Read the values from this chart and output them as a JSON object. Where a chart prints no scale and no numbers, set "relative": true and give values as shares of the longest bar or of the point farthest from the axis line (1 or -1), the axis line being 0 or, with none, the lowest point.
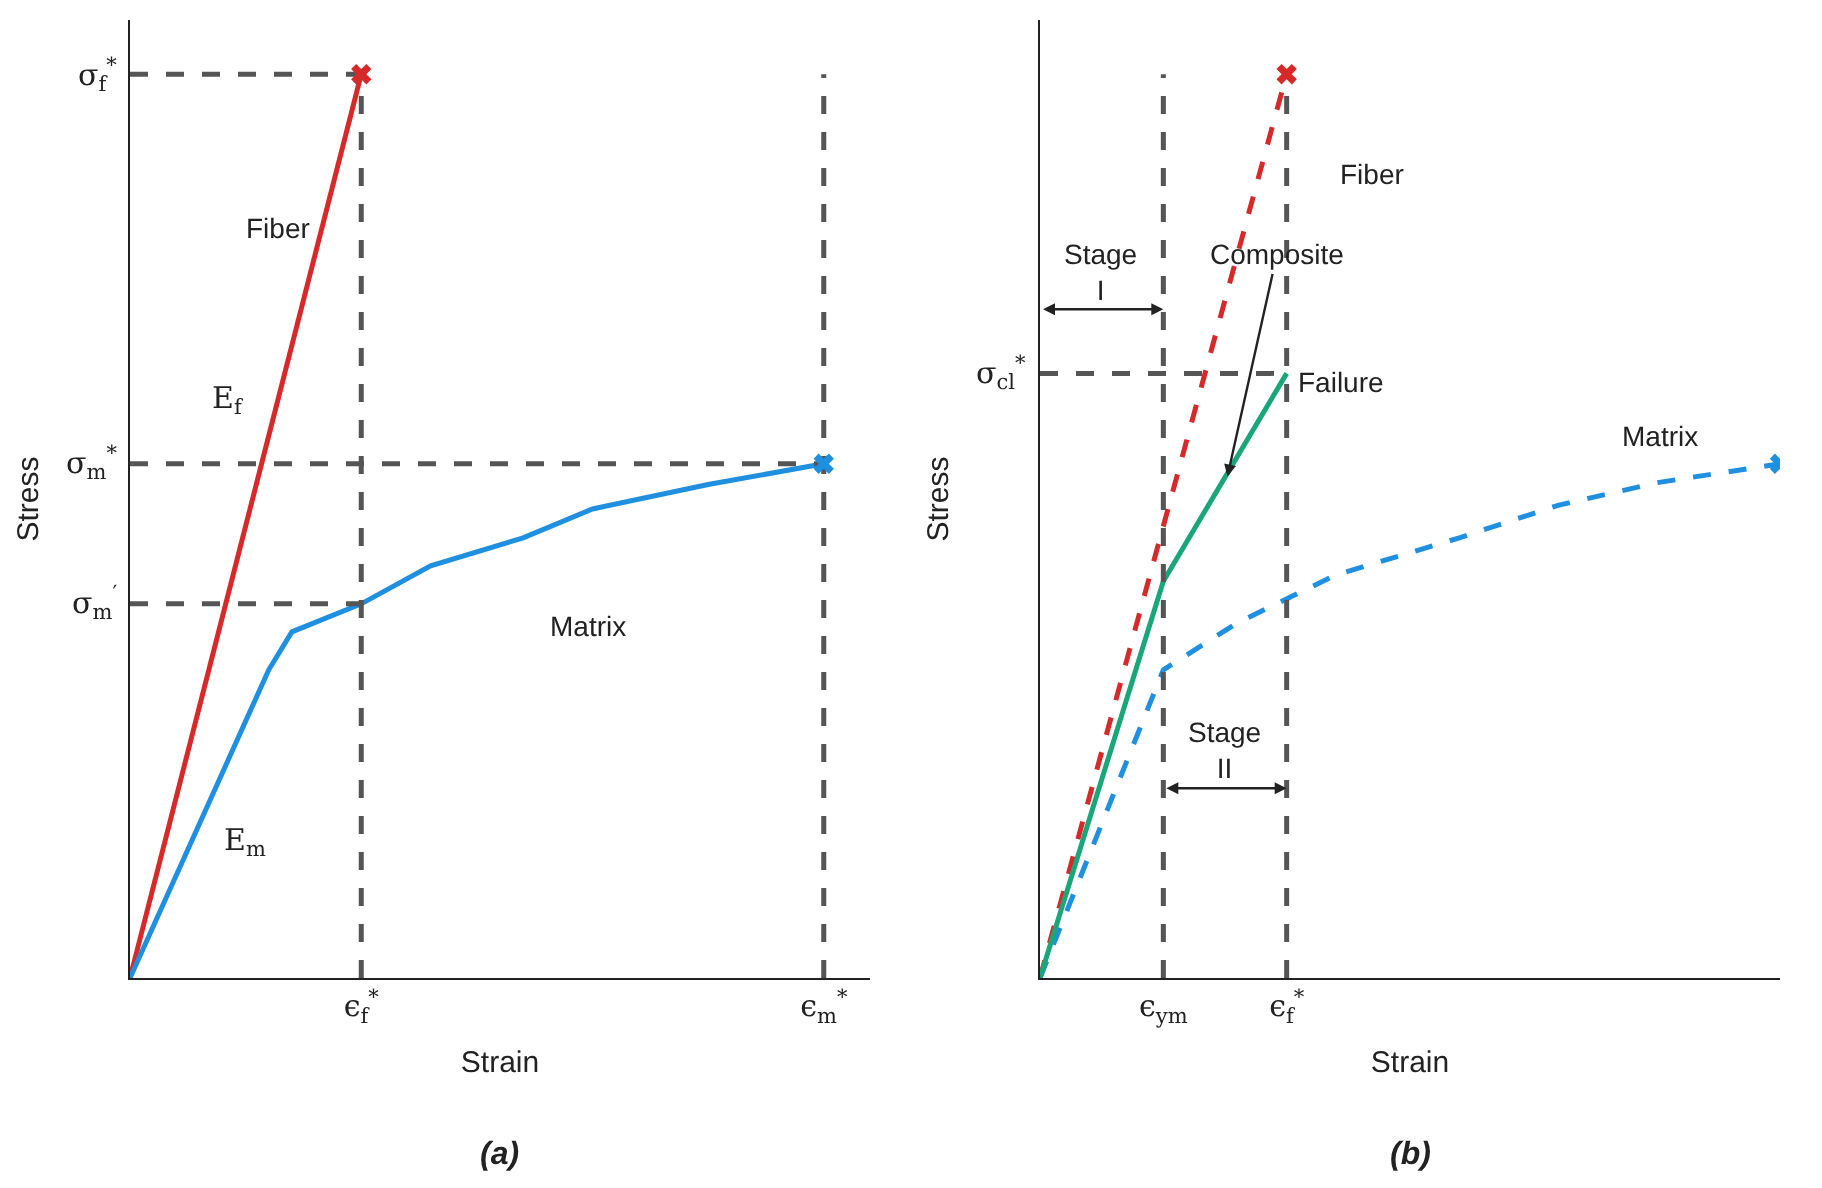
{
  "chart_data": [
    {
      "type": "line",
      "title": "(a)",
      "xlabel": "Strain",
      "ylabel": "Stress",
      "relative": true,
      "grid": false,
      "categories": [
        null,
        null,
        null,
        null,
        null,
        null,
        null,
        null,
        null,
        null,
        "ϵ$_{f}$$^{*}$",
        null,
        null,
        null,
        null,
        null,
        null,
        null,
        null,
        null,
        null,
        null,
        null,
        null,
        null,
        null,
        null,
        null,
        null,
        null,
        "ϵ$_{m}$$^{*}$",
        null,
        null
      ],
      "series": [
        {
          "color": "#d62a2a",
          "values": [
            0,
            null,
            null,
            null,
            null,
            null,
            null,
            null,
            null,
            null,
            1,
            null,
            null,
            null,
            null,
            null,
            null,
            null,
            null,
            null,
            null,
            null,
            null,
            null,
            null,
            null,
            null,
            null,
            null,
            null,
            null,
            null,
            null
          ]
        },
        {
          "color": "#1f8fe0",
          "values": [
            0,
            null,
            null,
            null,
            null,
            null,
            0.341,
            0.383,
            null,
            null,
            0.414,
            null,
            null,
            0.456,
            null,
            null,
            null,
            0.487,
            null,
            null,
            0.519,
            null,
            null,
            null,
            null,
            0.546,
            null,
            null,
            null,
            null,
            0.569,
            null,
            null
          ]
        },
        {
          "type": "scatter",
          "marker": "cross",
          "color": "#d62a2a",
          "values": [
            null,
            null,
            null,
            null,
            null,
            null,
            null,
            null,
            null,
            null,
            1,
            null,
            null,
            null,
            null,
            null,
            null,
            null,
            null,
            null,
            null,
            null,
            null,
            null,
            null,
            null,
            null,
            null,
            null,
            null,
            null,
            null,
            null
          ]
        },
        {
          "type": "scatter",
          "marker": "cross",
          "color": "#1f8fe0",
          "values": [
            null,
            null,
            null,
            null,
            null,
            null,
            null,
            null,
            null,
            null,
            null,
            null,
            null,
            null,
            null,
            null,
            null,
            null,
            null,
            null,
            null,
            null,
            null,
            null,
            null,
            null,
            null,
            null,
            null,
            null,
            0.569,
            null,
            null
          ]
        }
      ],
      "ref_lines": [
        {
          "axis": "x",
          "value": "ϵ$_{f}$$^{*}$",
          "line_style": "dashed",
          "color": "#555555"
        },
        {
          "axis": "x",
          "value": "ϵ$_{m}$$^{*}$",
          "line_style": "dashed",
          "color": "#555555"
        },
        {
          "axis": "y",
          "value": 1,
          "label": "σ$_{f}$$^{*}$",
          "line_style": "dashed",
          "color": "#555555"
        },
        {
          "axis": "y",
          "value": 0.569,
          "label": "σ$_{m}$$^{*}$",
          "line_style": "dashed",
          "color": "#555555"
        },
        {
          "axis": "y",
          "value": 0.414,
          "label": "σ$_{m}$$^{′}$",
          "line_style": "dashed",
          "color": "#555555"
        }
      ],
      "annotations": [
        "Fiber",
        "Matrix",
        "E$_{f}$",
        "E$_{m}$"
      ]
    },
    {
      "type": "line",
      "title": "(b)",
      "xlabel": "Strain",
      "ylabel": "Stress",
      "relative": true,
      "grid": false,
      "categories": [
        null,
        null,
        null,
        null,
        null,
        "ϵ$_{ym}$",
        null,
        null,
        null,
        null,
        "ϵ$_{f}$$^{*}$",
        null,
        null,
        null,
        null,
        null,
        null,
        null,
        null,
        null,
        null,
        null,
        null,
        null,
        null,
        null,
        null,
        null,
        null,
        null,
        null
      ],
      "series": [
        {
          "line_style": "dashed",
          "color": "#d62a2a",
          "values": [
            0,
            null,
            null,
            null,
            null,
            null,
            null,
            null,
            null,
            null,
            1,
            null,
            null,
            null,
            null,
            null,
            null,
            null,
            null,
            null,
            null,
            null,
            null,
            null,
            null,
            null,
            null,
            null,
            null,
            null,
            null
          ]
        },
        {
          "line_style": "dashed",
          "color": "#1f8fe0",
          "values": [
            0,
            null,
            null,
            null,
            null,
            0.341,
            null,
            null,
            0.393,
            null,
            null,
            null,
            0.446,
            null,
            null,
            null,
            null,
            0.487,
            null,
            null,
            null,
            0.523,
            null,
            null,
            null,
            0.548,
            null,
            null,
            null,
            null,
            0.569
          ]
        },
        {
          "color": "#19a77a",
          "values": [
            0,
            null,
            null,
            null,
            null,
            0.439,
            null,
            null,
            null,
            null,
            0.669,
            null,
            null,
            null,
            null,
            null,
            null,
            null,
            null,
            null,
            null,
            null,
            null,
            null,
            null,
            null,
            null,
            null,
            null,
            null,
            null
          ]
        },
        {
          "type": "scatter",
          "marker": "cross",
          "color": "#d62a2a",
          "values": [
            null,
            null,
            null,
            null,
            null,
            null,
            null,
            null,
            null,
            null,
            1,
            null,
            null,
            null,
            null,
            null,
            null,
            null,
            null,
            null,
            null,
            null,
            null,
            null,
            null,
            null,
            null,
            null,
            null,
            null,
            null
          ]
        },
        {
          "type": "scatter",
          "marker": "cross",
          "color": "#1f8fe0",
          "values": [
            null,
            null,
            null,
            null,
            null,
            null,
            null,
            null,
            null,
            null,
            null,
            null,
            null,
            null,
            null,
            null,
            null,
            null,
            null,
            null,
            null,
            null,
            null,
            null,
            null,
            null,
            null,
            null,
            null,
            null,
            0.569
          ]
        }
      ],
      "ref_lines": [
        {
          "axis": "x",
          "value": "ϵ$_{ym}$",
          "line_style": "dashed",
          "color": "#555555"
        },
        {
          "axis": "x",
          "value": "ϵ$_{f}$$^{*}$",
          "line_style": "dashed",
          "color": "#555555"
        },
        {
          "axis": "y",
          "value": 0.669,
          "label": "σ$_{cl}$$^{*}$",
          "line_style": "dashed",
          "color": "#555555"
        }
      ],
      "annotations": [
        "Stage\nI",
        "Stage\nII",
        "Fiber",
        "Matrix",
        "Failure",
        "Composite"
      ]
    }
  ]
}
